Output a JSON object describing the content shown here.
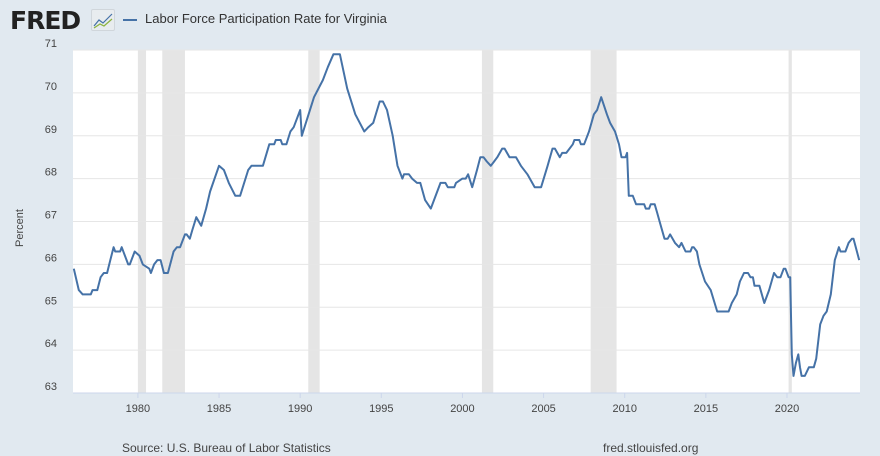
{
  "header": {
    "logo": "FRED",
    "title": "Labor Force Participation Rate for Virginia"
  },
  "footer": {
    "source": "Source: U.S. Bureau of Labor Statistics",
    "site": "fred.stlouisfed.org"
  },
  "colors": {
    "line": "#4572a7",
    "recession": "#e5e5e5",
    "grid": "#e6e6e6",
    "background": "#e1e9f0"
  },
  "chart_data": {
    "type": "line",
    "title": "Labor Force Participation Rate for Virginia",
    "xlabel": "",
    "ylabel": "Percent",
    "xlim": [
      1976.0,
      2024.5
    ],
    "ylim": [
      63,
      71
    ],
    "grid": true,
    "legend": "top-left",
    "yticks": [
      "63",
      "64",
      "65",
      "66",
      "67",
      "68",
      "69",
      "70",
      "71"
    ],
    "xticks": [
      "1980",
      "1985",
      "1990",
      "1995",
      "2000",
      "2005",
      "2010",
      "2015",
      "2020"
    ],
    "recessions": [
      [
        1980.0,
        1980.5
      ],
      [
        1981.5,
        1982.9
      ],
      [
        1990.5,
        1991.2
      ],
      [
        2001.2,
        2001.9
      ],
      [
        2007.9,
        2009.5
      ],
      [
        2020.1,
        2020.3
      ]
    ],
    "series": [
      {
        "name": "Labor Force Participation Rate for Virginia",
        "points": [
          [
            1976.05,
            65.9
          ],
          [
            1976.36,
            65.4
          ],
          [
            1976.6,
            65.3
          ],
          [
            1977.1,
            65.3
          ],
          [
            1977.2,
            65.4
          ],
          [
            1977.5,
            65.4
          ],
          [
            1977.7,
            65.7
          ],
          [
            1977.9,
            65.8
          ],
          [
            1978.1,
            65.8
          ],
          [
            1978.3,
            66.1
          ],
          [
            1978.5,
            66.4
          ],
          [
            1978.6,
            66.3
          ],
          [
            1978.9,
            66.3
          ],
          [
            1979.0,
            66.4
          ],
          [
            1979.4,
            66.0
          ],
          [
            1979.5,
            66.0
          ],
          [
            1979.8,
            66.3
          ],
          [
            1980.1,
            66.2
          ],
          [
            1980.3,
            66.0
          ],
          [
            1980.7,
            65.9
          ],
          [
            1980.8,
            65.8
          ],
          [
            1981.0,
            66.0
          ],
          [
            1981.2,
            66.1
          ],
          [
            1981.4,
            66.1
          ],
          [
            1981.6,
            65.8
          ],
          [
            1981.85,
            65.8
          ],
          [
            1982.2,
            66.3
          ],
          [
            1982.4,
            66.4
          ],
          [
            1982.6,
            66.4
          ],
          [
            1982.9,
            66.7
          ],
          [
            1983.0,
            66.7
          ],
          [
            1983.2,
            66.6
          ],
          [
            1983.35,
            66.8
          ],
          [
            1983.6,
            67.1
          ],
          [
            1983.9,
            66.9
          ],
          [
            1984.2,
            67.3
          ],
          [
            1984.45,
            67.7
          ],
          [
            1985.0,
            68.3
          ],
          [
            1985.3,
            68.2
          ],
          [
            1985.6,
            67.9
          ],
          [
            1986.0,
            67.6
          ],
          [
            1986.3,
            67.6
          ],
          [
            1986.8,
            68.2
          ],
          [
            1987.0,
            68.3
          ],
          [
            1987.7,
            68.3
          ],
          [
            1988.1,
            68.8
          ],
          [
            1988.4,
            68.8
          ],
          [
            1988.5,
            68.9
          ],
          [
            1988.8,
            68.9
          ],
          [
            1988.9,
            68.8
          ],
          [
            1989.15,
            68.8
          ],
          [
            1989.4,
            69.1
          ],
          [
            1989.6,
            69.2
          ],
          [
            1990.0,
            69.6
          ],
          [
            1990.1,
            69.0
          ],
          [
            1990.85,
            69.9
          ],
          [
            1991.4,
            70.3
          ],
          [
            1991.7,
            70.6
          ],
          [
            1992.05,
            70.9
          ],
          [
            1992.45,
            70.9
          ],
          [
            1992.9,
            70.1
          ],
          [
            1993.4,
            69.5
          ],
          [
            1993.95,
            69.1
          ],
          [
            1994.2,
            69.2
          ],
          [
            1994.5,
            69.3
          ],
          [
            1994.9,
            69.8
          ],
          [
            1995.1,
            69.8
          ],
          [
            1995.35,
            69.6
          ],
          [
            1995.7,
            69.0
          ],
          [
            1996.0,
            68.3
          ],
          [
            1996.3,
            68.0
          ],
          [
            1996.4,
            68.1
          ],
          [
            1996.7,
            68.1
          ],
          [
            1996.9,
            68.0
          ],
          [
            1997.2,
            67.9
          ],
          [
            1997.4,
            67.9
          ],
          [
            1997.7,
            67.5
          ],
          [
            1998.05,
            67.3
          ],
          [
            1998.65,
            67.9
          ],
          [
            1998.95,
            67.9
          ],
          [
            1999.1,
            67.8
          ],
          [
            1999.5,
            67.8
          ],
          [
            1999.6,
            67.9
          ],
          [
            2000.0,
            68.0
          ],
          [
            2000.2,
            68.0
          ],
          [
            2000.35,
            68.1
          ],
          [
            2000.6,
            67.8
          ],
          [
            2000.9,
            68.2
          ],
          [
            2001.1,
            68.5
          ],
          [
            2001.3,
            68.5
          ],
          [
            2001.5,
            68.4
          ],
          [
            2001.75,
            68.3
          ],
          [
            2001.95,
            68.4
          ],
          [
            2002.15,
            68.5
          ],
          [
            2002.45,
            68.7
          ],
          [
            2002.6,
            68.7
          ],
          [
            2002.9,
            68.5
          ],
          [
            2003.3,
            68.5
          ],
          [
            2003.6,
            68.3
          ],
          [
            2004.0,
            68.1
          ],
          [
            2004.45,
            67.8
          ],
          [
            2004.85,
            67.8
          ],
          [
            2005.25,
            68.3
          ],
          [
            2005.55,
            68.7
          ],
          [
            2005.7,
            68.7
          ],
          [
            2006.0,
            68.5
          ],
          [
            2006.15,
            68.6
          ],
          [
            2006.4,
            68.6
          ],
          [
            2006.8,
            68.8
          ],
          [
            2006.9,
            68.9
          ],
          [
            2007.2,
            68.9
          ],
          [
            2007.3,
            68.8
          ],
          [
            2007.5,
            68.8
          ],
          [
            2007.8,
            69.1
          ],
          [
            2008.1,
            69.5
          ],
          [
            2008.3,
            69.6
          ],
          [
            2008.55,
            69.9
          ],
          [
            2008.9,
            69.5
          ],
          [
            2009.1,
            69.3
          ],
          [
            2009.4,
            69.1
          ],
          [
            2009.65,
            68.8
          ],
          [
            2009.8,
            68.5
          ],
          [
            2010.05,
            68.5
          ],
          [
            2010.15,
            68.6
          ],
          [
            2010.25,
            67.6
          ],
          [
            2010.5,
            67.6
          ],
          [
            2010.7,
            67.4
          ],
          [
            2011.2,
            67.4
          ],
          [
            2011.3,
            67.3
          ],
          [
            2011.5,
            67.3
          ],
          [
            2011.6,
            67.4
          ],
          [
            2011.85,
            67.4
          ],
          [
            2012.0,
            67.2
          ],
          [
            2012.15,
            67.0
          ],
          [
            2012.45,
            66.6
          ],
          [
            2012.65,
            66.6
          ],
          [
            2012.8,
            66.7
          ],
          [
            2013.1,
            66.5
          ],
          [
            2013.35,
            66.4
          ],
          [
            2013.5,
            66.5
          ],
          [
            2013.75,
            66.3
          ],
          [
            2014.05,
            66.3
          ],
          [
            2014.15,
            66.4
          ],
          [
            2014.25,
            66.4
          ],
          [
            2014.45,
            66.3
          ],
          [
            2014.6,
            66.0
          ],
          [
            2014.95,
            65.6
          ],
          [
            2015.3,
            65.4
          ],
          [
            2015.7,
            64.9
          ],
          [
            2016.4,
            64.9
          ],
          [
            2016.6,
            65.1
          ],
          [
            2016.9,
            65.3
          ],
          [
            2017.1,
            65.6
          ],
          [
            2017.35,
            65.8
          ],
          [
            2017.6,
            65.8
          ],
          [
            2017.75,
            65.7
          ],
          [
            2017.9,
            65.7
          ],
          [
            2018.0,
            65.5
          ],
          [
            2018.3,
            65.5
          ],
          [
            2018.6,
            65.1
          ],
          [
            2018.9,
            65.4
          ],
          [
            2019.2,
            65.8
          ],
          [
            2019.4,
            65.7
          ],
          [
            2019.6,
            65.7
          ],
          [
            2019.8,
            65.9
          ],
          [
            2019.9,
            65.9
          ],
          [
            2020.1,
            65.7
          ],
          [
            2020.2,
            65.7
          ],
          [
            2020.3,
            63.9
          ],
          [
            2020.4,
            63.4
          ],
          [
            2020.55,
            63.7
          ],
          [
            2020.7,
            63.9
          ],
          [
            2020.8,
            63.6
          ],
          [
            2020.9,
            63.4
          ],
          [
            2021.1,
            63.4
          ],
          [
            2021.35,
            63.6
          ],
          [
            2021.65,
            63.6
          ],
          [
            2021.8,
            63.8
          ],
          [
            2022.05,
            64.6
          ],
          [
            2022.25,
            64.8
          ],
          [
            2022.45,
            64.9
          ],
          [
            2022.7,
            65.3
          ],
          [
            2022.95,
            66.1
          ],
          [
            2023.2,
            66.4
          ],
          [
            2023.3,
            66.3
          ],
          [
            2023.6,
            66.3
          ],
          [
            2023.8,
            66.5
          ],
          [
            2024.0,
            66.6
          ],
          [
            2024.1,
            66.6
          ],
          [
            2024.45,
            66.1
          ]
        ]
      }
    ]
  }
}
